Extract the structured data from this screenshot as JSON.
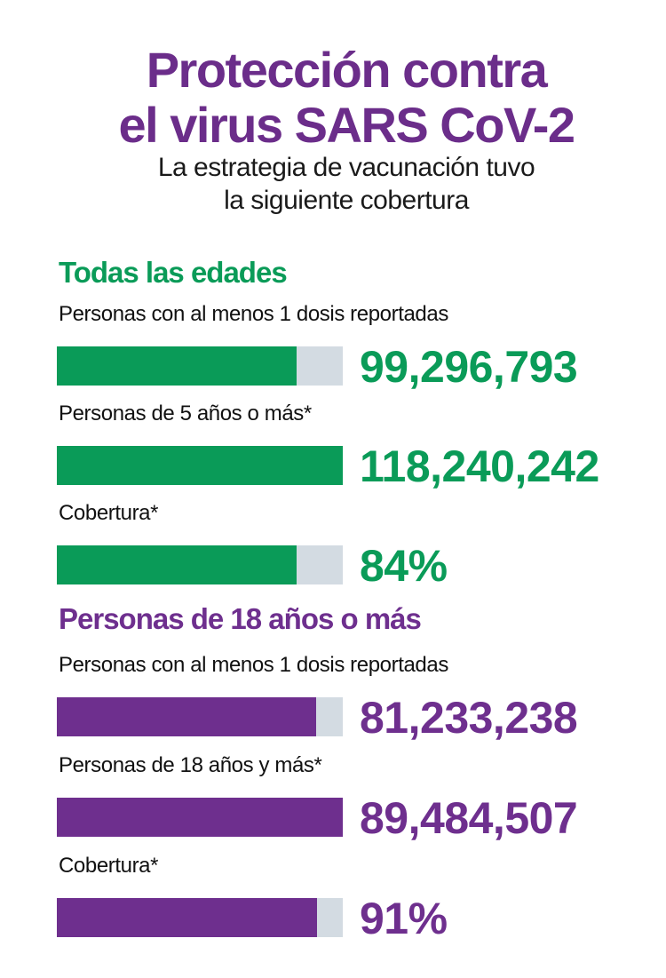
{
  "header": {
    "title": [
      "Protección contra",
      "el virus SARS CoV-2"
    ],
    "title_color": "#6b2d8a",
    "subtitle": [
      "La estrategia de vacunación tuvo",
      "la siguiente cobertura"
    ]
  },
  "sections": [
    {
      "heading": "Todas las edades",
      "color": "#0a9b58",
      "reported": {
        "label": "Personas con al menos 1 dosis reportadas",
        "value": 99296793,
        "value_label": "99,296,793"
      },
      "population": {
        "label": "Personas de 5 años o más*",
        "value": 118240242,
        "value_label": "118,240,242"
      },
      "coverage": {
        "label": "Cobertura*",
        "value": 84,
        "value_label": "84%"
      }
    },
    {
      "heading": "Personas de 18 años o más",
      "color": "#6e2f8e",
      "reported": {
        "label": "Personas con al menos 1 dosis reportadas",
        "value": 81233238,
        "value_label": "81,233,238"
      },
      "population": {
        "label": "Personas de 18 años y más*",
        "value": 89484507,
        "value_label": "89,484,507"
      },
      "coverage": {
        "label": "Cobertura*",
        "value": 91,
        "value_label": "91%"
      }
    }
  ]
}
